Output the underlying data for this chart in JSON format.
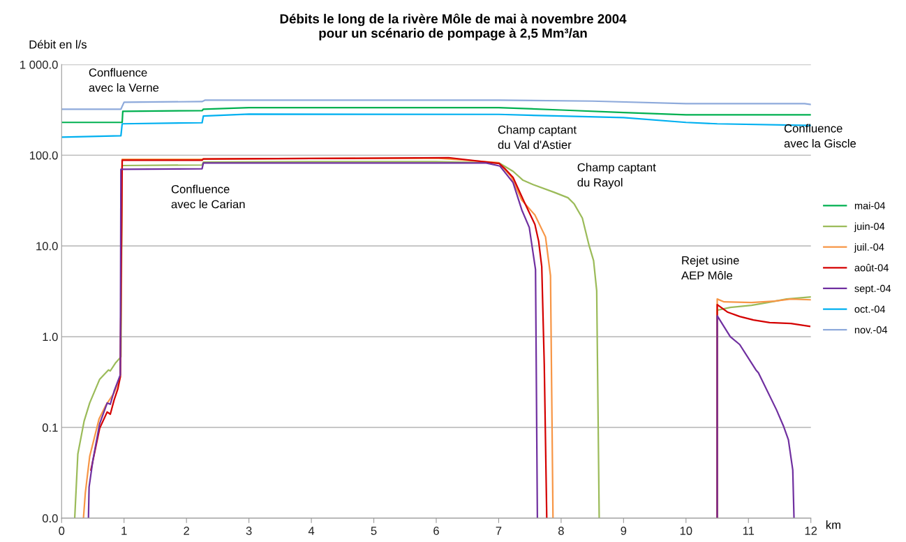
{
  "chart_data": {
    "type": "line",
    "title": "Débits le long de la rivère Môle de mai à novembre 2004\npour un scénario de pompage à 2,5 Mm³/an",
    "ylabel": "Débit en l/s",
    "xlabel": "km",
    "log": true,
    "grid": "y",
    "legend": "right",
    "marker": "none",
    "line_style": "solid",
    "xlim": [
      0,
      12
    ],
    "xticks": [
      0,
      1,
      2,
      3,
      4,
      5,
      6,
      7,
      8,
      9,
      10,
      11,
      12
    ],
    "ylim": [
      0.01,
      1000
    ],
    "yticks": [
      {
        "value": 0.01,
        "label": "0.0"
      },
      {
        "value": 0.1,
        "label": "0.1"
      },
      {
        "value": 1,
        "label": "1.0"
      },
      {
        "value": 10,
        "label": "10.0"
      },
      {
        "value": 100,
        "label": "100.0"
      },
      {
        "value": 1000,
        "label": "1 000.0"
      }
    ],
    "annotations": [
      "Confluence\navec la Verne",
      "Confluence\navec le Carian",
      "Champ captant\ndu Val d'Astier",
      "Champ captant\ndu Rayol",
      "Confluence\navec la Giscle",
      "Rejet usine\nAEP Môle"
    ],
    "series": [
      {
        "name": "mai-04",
        "color": "#00b050",
        "x": [
          0,
          0.97,
          0.98,
          2.25,
          2.27,
          3.0,
          7.0,
          8.0,
          9.0,
          10.0,
          12
        ],
        "values": [
          230,
          230,
          305,
          310,
          322,
          335,
          335,
          315,
          295,
          279,
          279
        ]
      },
      {
        "name": "juin-04",
        "color": "#9bbb59",
        "x": [
          0.21,
          0.26,
          0.36,
          0.45,
          0.61,
          0.75,
          0.78,
          0.86,
          0.95,
          0.97,
          2.25,
          2.27,
          4.0,
          6.0,
          7.01,
          7.23,
          7.39,
          7.55,
          7.89,
          8.11,
          8.21,
          8.34,
          8.45,
          8.52,
          8.57,
          8.61,
          9.5,
          10.5,
          10.5,
          10.71,
          11.05,
          11.31,
          11.61,
          12.0
        ],
        "values": [
          0.01,
          0.051,
          0.117,
          0.186,
          0.34,
          0.43,
          0.42,
          0.51,
          0.6,
          77,
          78,
          84,
          85,
          85,
          82,
          66.5,
          53,
          47.5,
          39,
          34,
          29,
          20.3,
          10,
          6.9,
          3.2,
          0.01,
          null,
          0.01,
          1.96,
          2.1,
          2.22,
          2.38,
          2.6,
          2.74
        ]
      },
      {
        "name": "juil.-04",
        "color": "#f79646",
        "x": [
          0.35,
          0.38,
          0.45,
          0.6,
          0.71,
          0.84,
          0.94,
          0.97,
          2.25,
          2.27,
          4.0,
          6.0,
          7.0,
          7.2,
          7.37,
          7.58,
          7.75,
          7.83,
          7.87,
          9.5,
          10.5,
          10.5,
          10.61,
          11.05,
          11.42,
          11.68,
          12.0
        ],
        "values": [
          0.01,
          0.019,
          0.048,
          0.124,
          0.176,
          0.24,
          0.36,
          90,
          90,
          91,
          92,
          93,
          83,
          58,
          32,
          22,
          12.6,
          4.7,
          0.01,
          null,
          0.01,
          2.6,
          2.42,
          2.38,
          2.47,
          2.6,
          2.55
        ]
      },
      {
        "name": "août-04",
        "color": "#d40000",
        "x": [
          0.47,
          0.61,
          0.73,
          0.78,
          0.84,
          0.9,
          0.94,
          0.97,
          2.25,
          2.27,
          4.0,
          6.2,
          7.01,
          7.1,
          7.23,
          7.41,
          7.58,
          7.64,
          7.69,
          7.73,
          7.77,
          9.0,
          10.5,
          10.5,
          10.67,
          10.86,
          11.08,
          11.34,
          11.68,
          11.98
        ],
        "values": [
          0.034,
          0.098,
          0.148,
          0.14,
          0.2,
          0.265,
          0.36,
          88,
          88,
          91,
          92,
          94,
          81,
          71,
          57,
          30.5,
          17.3,
          11.3,
          5.9,
          0.5,
          0.01,
          null,
          0.01,
          2.26,
          1.86,
          1.67,
          1.53,
          1.43,
          1.4,
          1.3
        ]
      },
      {
        "name": "sept.-04",
        "color": "#7030a0",
        "x": [
          0.43,
          0.44,
          0.5,
          0.61,
          0.73,
          0.78,
          0.84,
          0.94,
          0.95,
          2.25,
          2.27,
          4.0,
          6.8,
          7.02,
          7.13,
          7.23,
          7.37,
          7.49,
          7.59,
          7.62,
          9.0,
          10.5,
          10.5,
          10.71,
          10.86,
          11.12,
          11.16,
          11.45,
          11.56,
          11.64,
          11.71,
          11.73
        ],
        "values": [
          0.01,
          0.022,
          0.043,
          0.11,
          0.186,
          0.18,
          0.25,
          0.38,
          70,
          71,
          82,
          82,
          82,
          76,
          61,
          50,
          25,
          16,
          5.5,
          0.01,
          null,
          0.01,
          1.7,
          1.0,
          0.82,
          0.43,
          0.4,
          0.156,
          0.104,
          0.073,
          0.034,
          0.01
        ]
      },
      {
        "name": "oct.-04",
        "color": "#00b0f0",
        "x": [
          0,
          0.95,
          0.97,
          2.25,
          2.27,
          3.0,
          7.0,
          8.0,
          9.0,
          10.0,
          10.5,
          12
        ],
        "values": [
          158,
          164,
          222,
          228,
          270,
          284,
          282,
          270,
          260,
          230,
          222,
          213
        ]
      },
      {
        "name": "nov.-04",
        "color": "#8eaadb",
        "x": [
          0,
          0.95,
          1.0,
          2.25,
          2.3,
          7.0,
          8.5,
          10.0,
          11.9,
          12
        ],
        "values": [
          322,
          322,
          384,
          390,
          405,
          405,
          395,
          371,
          371,
          362
        ]
      }
    ]
  }
}
